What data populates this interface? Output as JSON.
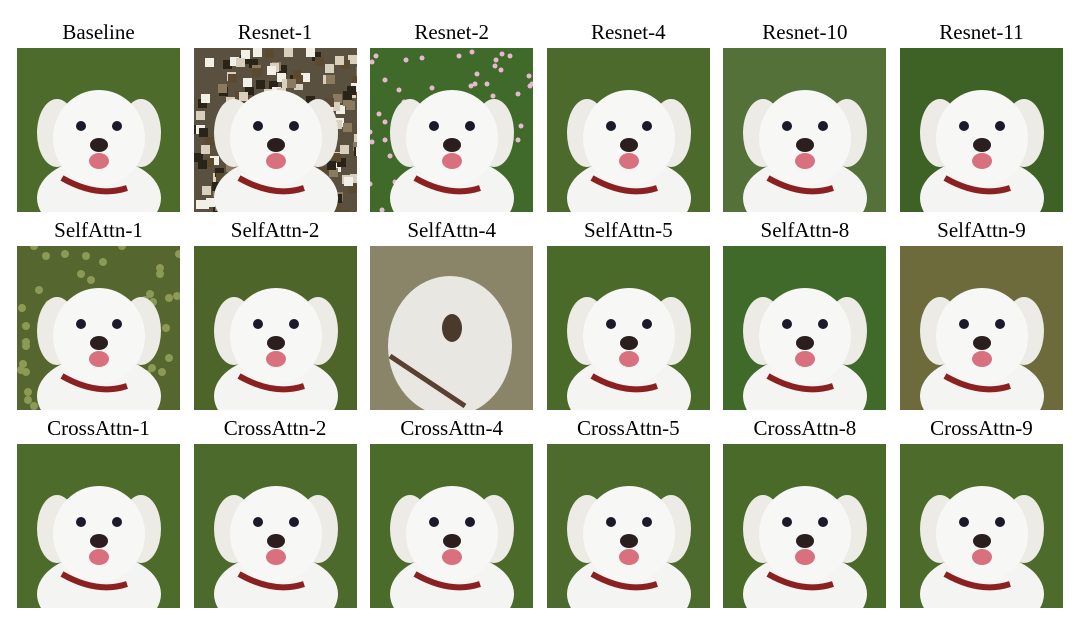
{
  "figure": {
    "rows": [
      [
        {
          "label": "Baseline",
          "bg": "#4d6b2b",
          "style": "normal"
        },
        {
          "label": "Resnet-1",
          "bg": "#5a5040",
          "style": "noisy"
        },
        {
          "label": "Resnet-2",
          "bg": "#3f6a2a",
          "style": "flowers"
        },
        {
          "label": "Resnet-4",
          "bg": "#4b6a2c",
          "style": "normal"
        },
        {
          "label": "Resnet-10",
          "bg": "#54713a",
          "style": "normal"
        },
        {
          "label": "Resnet-11",
          "bg": "#3e6226",
          "style": "normal"
        }
      ],
      [
        {
          "label": "SelfAttn-1",
          "bg": "#55662e",
          "style": "bush"
        },
        {
          "label": "SelfAttn-2",
          "bg": "#4e6529",
          "style": "normal"
        },
        {
          "label": "SelfAttn-4",
          "bg": "#8a8468",
          "style": "blur"
        },
        {
          "label": "SelfAttn-5",
          "bg": "#4a6a2a",
          "style": "normal"
        },
        {
          "label": "SelfAttn-8",
          "bg": "#3f6a2a",
          "style": "normal"
        },
        {
          "label": "SelfAttn-9",
          "bg": "#6d6b3c",
          "style": "normal"
        }
      ],
      [
        {
          "label": "CrossAttn-1",
          "bg": "#4d6b2b",
          "style": "normal"
        },
        {
          "label": "CrossAttn-2",
          "bg": "#4b6a2c",
          "style": "normal"
        },
        {
          "label": "CrossAttn-4",
          "bg": "#4a6b2a",
          "style": "normal"
        },
        {
          "label": "CrossAttn-5",
          "bg": "#4c6b2c",
          "style": "normal"
        },
        {
          "label": "CrossAttn-8",
          "bg": "#4a6a2a",
          "style": "normal"
        },
        {
          "label": "CrossAttn-9",
          "bg": "#4d6b2b",
          "style": "normal"
        }
      ]
    ]
  }
}
